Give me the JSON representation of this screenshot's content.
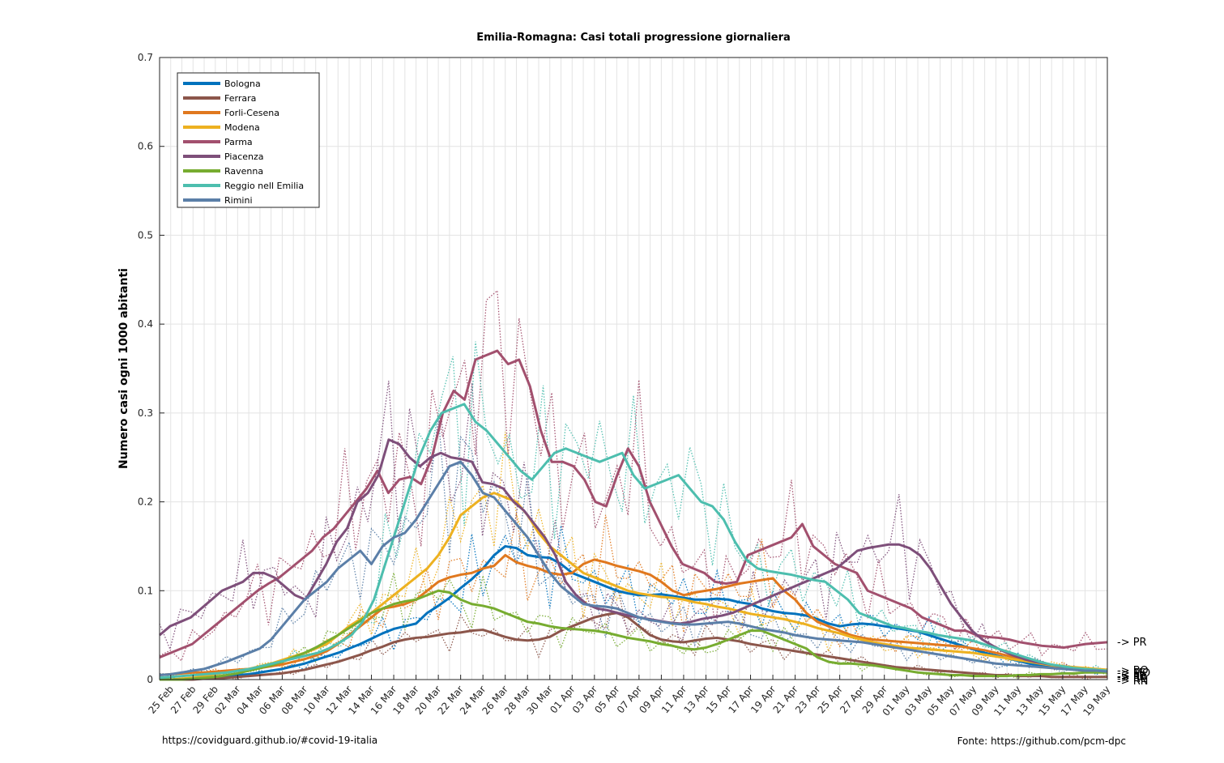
{
  "chart_data": {
    "type": "line",
    "title": "Emilia-Romagna: Casi totali progressione giornaliera",
    "xlabel": "",
    "ylabel": "Numero casi ogni 1000 abitanti",
    "ylim": [
      0,
      0.7
    ],
    "yticks": [
      "0",
      "0.1",
      "0.2",
      "0.3",
      "0.4",
      "0.5",
      "0.6",
      "0.7"
    ],
    "xticks": [
      "25 Feb",
      "27 Feb",
      "29 Feb",
      "02 Mar",
      "04 Mar",
      "06 Mar",
      "08 Mar",
      "10 Mar",
      "12 Mar",
      "14 Mar",
      "16 Mar",
      "18 Mar",
      "20 Mar",
      "22 Mar",
      "24 Mar",
      "26 Mar",
      "28 Mar",
      "30 Mar",
      "01 Apr",
      "03 Apr",
      "05 Apr",
      "07 Apr",
      "09 Apr",
      "11 Apr",
      "13 Apr",
      "15 Apr",
      "17 Apr",
      "19 Apr",
      "21 Apr",
      "23 Apr",
      "25 Apr",
      "27 Apr",
      "29 Apr",
      "01 May",
      "03 May",
      "05 May",
      "07 May",
      "09 May",
      "11 May",
      "13 May",
      "15 May",
      "17 May",
      "19 May"
    ],
    "x_start": "24 Feb",
    "x_end": "19 May",
    "grid": true,
    "legend_position": "top-left",
    "series": [
      {
        "name": "Bologna",
        "color": "#0072BD",
        "end_label": "-> BO",
        "values": [
          0.0,
          0.0,
          0.0,
          0.001,
          0.002,
          0.003,
          0.004,
          0.005,
          0.006,
          0.008,
          0.01,
          0.012,
          0.015,
          0.018,
          0.022,
          0.026,
          0.03,
          0.035,
          0.04,
          0.046,
          0.052,
          0.057,
          0.06,
          0.063,
          0.075,
          0.083,
          0.092,
          0.103,
          0.113,
          0.125,
          0.14,
          0.15,
          0.148,
          0.14,
          0.138,
          0.137,
          0.13,
          0.12,
          0.115,
          0.11,
          0.105,
          0.1,
          0.097,
          0.095,
          0.095,
          0.096,
          0.094,
          0.092,
          0.09,
          0.09,
          0.091,
          0.09,
          0.087,
          0.085,
          0.08,
          0.077,
          0.075,
          0.074,
          0.072,
          0.068,
          0.063,
          0.06,
          0.062,
          0.063,
          0.062,
          0.06,
          0.058,
          0.056,
          0.054,
          0.05,
          0.046,
          0.042,
          0.038,
          0.034,
          0.03,
          0.027,
          0.024,
          0.021,
          0.018,
          0.016,
          0.014,
          0.013,
          0.012,
          0.011,
          0.01,
          0.01
        ]
      },
      {
        "name": "Ferrara",
        "color": "#8C564B",
        "end_label": "-> FE",
        "values": [
          0.0,
          0.0,
          0.0,
          0.0,
          0.001,
          0.001,
          0.002,
          0.003,
          0.004,
          0.005,
          0.006,
          0.007,
          0.009,
          0.011,
          0.014,
          0.017,
          0.02,
          0.024,
          0.028,
          0.033,
          0.037,
          0.042,
          0.045,
          0.047,
          0.048,
          0.05,
          0.052,
          0.053,
          0.055,
          0.056,
          0.052,
          0.048,
          0.045,
          0.044,
          0.045,
          0.048,
          0.055,
          0.06,
          0.065,
          0.07,
          0.073,
          0.075,
          0.07,
          0.06,
          0.05,
          0.045,
          0.043,
          0.042,
          0.044,
          0.046,
          0.047,
          0.045,
          0.043,
          0.04,
          0.038,
          0.036,
          0.034,
          0.032,
          0.03,
          0.028,
          0.026,
          0.024,
          0.022,
          0.02,
          0.018,
          0.016,
          0.014,
          0.013,
          0.012,
          0.011,
          0.01,
          0.009,
          0.008,
          0.007,
          0.006,
          0.005,
          0.005,
          0.004,
          0.004,
          0.004,
          0.003,
          0.003,
          0.003,
          0.003,
          0.003,
          0.003
        ]
      },
      {
        "name": "Forli-Cesena",
        "color": "#E0781E",
        "end_label": "-> FC",
        "values": [
          0.005,
          0.006,
          0.007,
          0.008,
          0.008,
          0.009,
          0.01,
          0.011,
          0.012,
          0.013,
          0.015,
          0.017,
          0.02,
          0.023,
          0.027,
          0.032,
          0.04,
          0.05,
          0.06,
          0.07,
          0.08,
          0.082,
          0.085,
          0.09,
          0.1,
          0.11,
          0.115,
          0.118,
          0.12,
          0.125,
          0.128,
          0.14,
          0.132,
          0.128,
          0.125,
          0.12,
          0.118,
          0.12,
          0.13,
          0.135,
          0.132,
          0.128,
          0.125,
          0.122,
          0.118,
          0.11,
          0.1,
          0.095,
          0.098,
          0.1,
          0.102,
          0.105,
          0.108,
          0.11,
          0.112,
          0.114,
          0.1,
          0.09,
          0.075,
          0.065,
          0.06,
          0.055,
          0.05,
          0.047,
          0.045,
          0.044,
          0.043,
          0.042,
          0.041,
          0.04,
          0.039,
          0.038,
          0.037,
          0.035,
          0.033,
          0.03,
          0.027,
          0.024,
          0.021,
          0.018,
          0.016,
          0.014,
          0.012,
          0.011,
          0.01,
          0.009
        ]
      },
      {
        "name": "Modena",
        "color": "#EDB120",
        "end_label": "-> MO",
        "values": [
          0.0,
          0.0,
          0.001,
          0.002,
          0.004,
          0.006,
          0.008,
          0.01,
          0.012,
          0.015,
          0.018,
          0.022,
          0.026,
          0.03,
          0.035,
          0.04,
          0.05,
          0.06,
          0.068,
          0.075,
          0.085,
          0.095,
          0.105,
          0.115,
          0.125,
          0.14,
          0.16,
          0.185,
          0.195,
          0.205,
          0.21,
          0.205,
          0.2,
          0.185,
          0.165,
          0.15,
          0.14,
          0.13,
          0.12,
          0.115,
          0.11,
          0.105,
          0.1,
          0.097,
          0.095,
          0.093,
          0.092,
          0.09,
          0.087,
          0.085,
          0.082,
          0.08,
          0.077,
          0.074,
          0.072,
          0.07,
          0.068,
          0.065,
          0.062,
          0.058,
          0.055,
          0.052,
          0.048,
          0.045,
          0.042,
          0.04,
          0.038,
          0.036,
          0.035,
          0.034,
          0.033,
          0.032,
          0.031,
          0.03,
          0.028,
          0.026,
          0.024,
          0.022,
          0.02,
          0.018,
          0.016,
          0.015,
          0.014,
          0.013,
          0.012,
          0.011
        ]
      },
      {
        "name": "Parma",
        "color": "#A2506E",
        "end_label": "-> PR",
        "values": [
          0.025,
          0.03,
          0.035,
          0.04,
          0.05,
          0.06,
          0.07,
          0.08,
          0.09,
          0.1,
          0.108,
          0.115,
          0.125,
          0.135,
          0.145,
          0.16,
          0.17,
          0.185,
          0.2,
          0.215,
          0.235,
          0.21,
          0.225,
          0.228,
          0.22,
          0.25,
          0.3,
          0.325,
          0.315,
          0.36,
          0.365,
          0.37,
          0.355,
          0.36,
          0.33,
          0.28,
          0.245,
          0.245,
          0.24,
          0.225,
          0.2,
          0.195,
          0.23,
          0.26,
          0.24,
          0.2,
          0.175,
          0.15,
          0.13,
          0.125,
          0.12,
          0.11,
          0.108,
          0.11,
          0.14,
          0.145,
          0.15,
          0.155,
          0.16,
          0.175,
          0.15,
          0.14,
          0.13,
          0.125,
          0.12,
          0.1,
          0.095,
          0.09,
          0.085,
          0.08,
          0.07,
          0.065,
          0.06,
          0.055,
          0.055,
          0.05,
          0.048,
          0.047,
          0.045,
          0.042,
          0.04,
          0.038,
          0.037,
          0.036,
          0.038,
          0.04,
          0.041,
          0.042
        ]
      },
      {
        "name": "Piacenza",
        "color": "#7E4F7A",
        "end_label": "-> PC",
        "values": [
          0.05,
          0.06,
          0.065,
          0.07,
          0.08,
          0.09,
          0.1,
          0.105,
          0.11,
          0.12,
          0.12,
          0.115,
          0.105,
          0.095,
          0.09,
          0.11,
          0.13,
          0.155,
          0.17,
          0.2,
          0.21,
          0.23,
          0.27,
          0.265,
          0.25,
          0.24,
          0.25,
          0.255,
          0.25,
          0.248,
          0.245,
          0.222,
          0.22,
          0.215,
          0.2,
          0.19,
          0.175,
          0.16,
          0.14,
          0.11,
          0.095,
          0.085,
          0.08,
          0.078,
          0.075,
          0.072,
          0.07,
          0.068,
          0.066,
          0.064,
          0.063,
          0.065,
          0.068,
          0.07,
          0.072,
          0.075,
          0.08,
          0.085,
          0.09,
          0.095,
          0.1,
          0.105,
          0.11,
          0.115,
          0.12,
          0.125,
          0.135,
          0.145,
          0.148,
          0.15,
          0.152,
          0.152,
          0.148,
          0.14,
          0.125,
          0.105,
          0.085,
          0.07,
          0.055,
          0.045,
          0.038,
          0.032,
          0.027,
          0.023,
          0.02,
          0.018,
          0.016,
          0.014,
          0.012,
          0.011,
          0.01,
          0.009
        ]
      },
      {
        "name": "Ravenna",
        "color": "#77AC30",
        "end_label": "-> RA",
        "values": [
          0.0,
          0.0,
          0.0,
          0.001,
          0.002,
          0.003,
          0.005,
          0.007,
          0.01,
          0.013,
          0.016,
          0.02,
          0.025,
          0.03,
          0.036,
          0.043,
          0.05,
          0.058,
          0.066,
          0.075,
          0.08,
          0.085,
          0.088,
          0.09,
          0.095,
          0.1,
          0.098,
          0.09,
          0.085,
          0.083,
          0.08,
          0.075,
          0.07,
          0.065,
          0.063,
          0.06,
          0.058,
          0.057,
          0.056,
          0.055,
          0.053,
          0.05,
          0.047,
          0.045,
          0.043,
          0.04,
          0.038,
          0.035,
          0.034,
          0.036,
          0.04,
          0.045,
          0.05,
          0.055,
          0.055,
          0.05,
          0.045,
          0.04,
          0.035,
          0.025,
          0.02,
          0.018,
          0.018,
          0.017,
          0.016,
          0.014,
          0.012,
          0.01,
          0.008,
          0.007,
          0.006,
          0.005,
          0.005,
          0.004,
          0.004,
          0.004,
          0.004,
          0.005,
          0.005,
          0.006,
          0.006,
          0.007,
          0.007,
          0.008,
          0.008,
          0.008
        ]
      },
      {
        "name": "Reggio nell Emilia",
        "color": "#4DBEAE",
        "end_label": "-> RE",
        "values": [
          0.002,
          0.003,
          0.004,
          0.005,
          0.006,
          0.007,
          0.008,
          0.01,
          0.012,
          0.015,
          0.018,
          0.021,
          0.024,
          0.027,
          0.03,
          0.035,
          0.042,
          0.05,
          0.065,
          0.09,
          0.13,
          0.17,
          0.21,
          0.25,
          0.28,
          0.3,
          0.305,
          0.31,
          0.29,
          0.28,
          0.265,
          0.25,
          0.235,
          0.225,
          0.24,
          0.255,
          0.26,
          0.255,
          0.25,
          0.245,
          0.25,
          0.255,
          0.23,
          0.215,
          0.22,
          0.225,
          0.23,
          0.215,
          0.2,
          0.195,
          0.18,
          0.155,
          0.135,
          0.125,
          0.122,
          0.12,
          0.118,
          0.115,
          0.112,
          0.11,
          0.1,
          0.09,
          0.075,
          0.07,
          0.065,
          0.06,
          0.058,
          0.055,
          0.053,
          0.05,
          0.048,
          0.046,
          0.044,
          0.04,
          0.036,
          0.032,
          0.028,
          0.024,
          0.02,
          0.017,
          0.015,
          0.013,
          0.012,
          0.011,
          0.01
        ]
      },
      {
        "name": "Rimini",
        "color": "#5B7FA8",
        "end_label": "-> RN",
        "values": [
          0.005,
          0.006,
          0.008,
          0.01,
          0.012,
          0.016,
          0.02,
          0.025,
          0.03,
          0.035,
          0.045,
          0.06,
          0.075,
          0.09,
          0.1,
          0.11,
          0.125,
          0.135,
          0.145,
          0.13,
          0.15,
          0.16,
          0.165,
          0.18,
          0.2,
          0.22,
          0.24,
          0.245,
          0.23,
          0.21,
          0.205,
          0.19,
          0.175,
          0.16,
          0.14,
          0.12,
          0.105,
          0.095,
          0.085,
          0.083,
          0.082,
          0.08,
          0.075,
          0.07,
          0.067,
          0.065,
          0.063,
          0.062,
          0.062,
          0.063,
          0.064,
          0.065,
          0.063,
          0.06,
          0.057,
          0.055,
          0.053,
          0.05,
          0.048,
          0.046,
          0.045,
          0.044,
          0.043,
          0.042,
          0.04,
          0.038,
          0.036,
          0.034,
          0.032,
          0.03,
          0.028,
          0.026,
          0.024,
          0.022,
          0.02,
          0.018,
          0.017,
          0.016,
          0.015,
          0.014,
          0.013,
          0.012,
          0.011,
          0.01,
          0.01,
          0.009
        ]
      }
    ]
  },
  "footer": {
    "left": "https://covidguard.github.io/#covid-19-italia",
    "right": "Fonte: https://github.com/pcm-dpc"
  }
}
